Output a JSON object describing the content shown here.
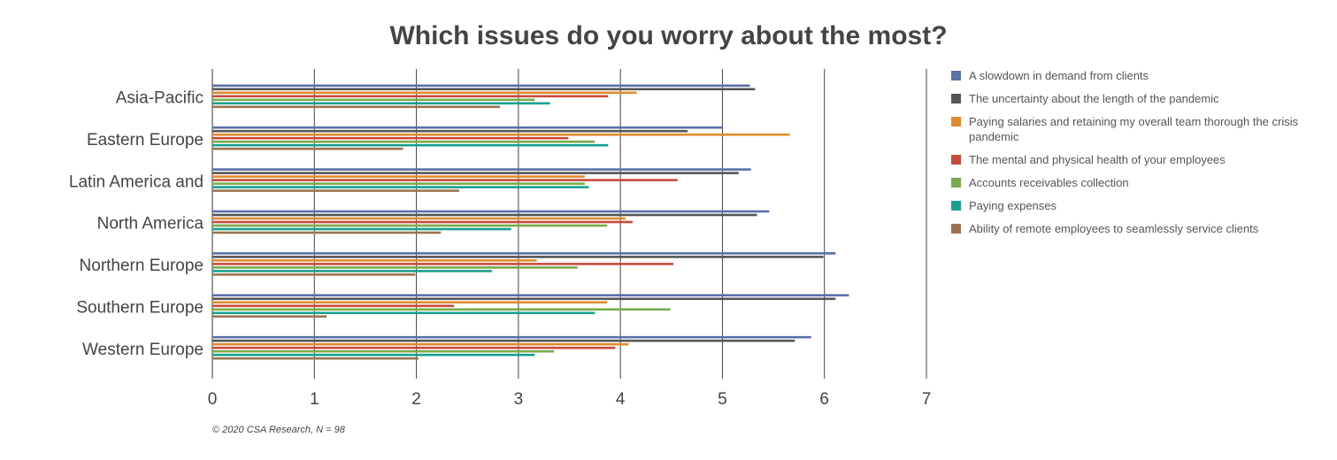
{
  "chart_data": {
    "type": "bar",
    "orientation": "horizontal",
    "title": "Which issues do you worry about the most?",
    "footnote": "© 2020 CSA Research, N = 98",
    "categories": [
      "Asia-Pacific",
      "Eastern Europe",
      "Latin America and",
      "North America",
      "Northern Europe",
      "Southern Europe",
      "Western Europe"
    ],
    "xlim": [
      0,
      7
    ],
    "xticks": [
      0,
      1,
      2,
      3,
      4,
      5,
      6,
      7
    ],
    "grid": true,
    "legend_position": "right",
    "series": [
      {
        "name": "A slowdown in demand from clients",
        "color": "#5b6fa8",
        "values": [
          5.27,
          5.0,
          5.28,
          5.46,
          6.11,
          6.24,
          5.87
        ]
      },
      {
        "name": "The uncertainty about the length of the pandemic",
        "color": "#555555",
        "values": [
          5.32,
          4.66,
          5.16,
          5.34,
          5.99,
          6.11,
          5.71
        ]
      },
      {
        "name": "Paying salaries and retaining my overall team thorough the crisis pandemic",
        "color": "#e08a2e",
        "values": [
          4.16,
          5.66,
          3.65,
          4.05,
          3.18,
          3.87,
          4.08
        ]
      },
      {
        "name": "The mental and physical health of your employees",
        "color": "#c84a3a",
        "values": [
          3.88,
          3.49,
          4.56,
          4.12,
          4.52,
          2.37,
          3.95
        ]
      },
      {
        "name": "Accounts receivables collection",
        "color": "#7aaa4a",
        "values": [
          3.16,
          3.75,
          3.65,
          3.87,
          3.58,
          4.49,
          3.35
        ]
      },
      {
        "name": "Paying expenses",
        "color": "#17a08d",
        "values": [
          3.31,
          3.88,
          3.69,
          2.93,
          2.74,
          3.75,
          3.16
        ]
      },
      {
        "name": "Ability of remote employees to seamlessly service clients",
        "color": "#9a7450",
        "values": [
          2.82,
          1.87,
          2.42,
          2.24,
          1.99,
          1.12,
          2.02
        ]
      }
    ]
  }
}
